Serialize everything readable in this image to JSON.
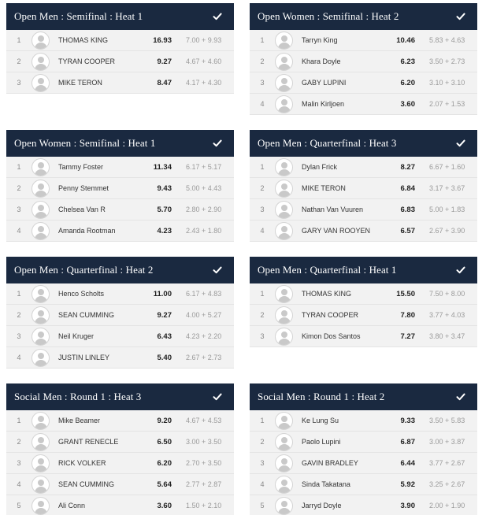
{
  "cards": [
    {
      "title": "Open Men : Semifinal : Heat 1",
      "rows": [
        {
          "rank": "1",
          "name": "THOMAS KING",
          "total": "16.93",
          "scores": "7.00 + 9.93"
        },
        {
          "rank": "2",
          "name": "TYRAN COOPER",
          "total": "9.27",
          "scores": "4.67 + 4.60"
        },
        {
          "rank": "3",
          "name": "MIKE TERON",
          "total": "8.47",
          "scores": "4.17 + 4.30"
        }
      ]
    },
    {
      "title": "Open Women : Semifinal : Heat 2",
      "rows": [
        {
          "rank": "1",
          "name": "Tarryn King",
          "total": "10.46",
          "scores": "5.83 + 4.63"
        },
        {
          "rank": "2",
          "name": "Khara Doyle",
          "total": "6.23",
          "scores": "3.50 + 2.73"
        },
        {
          "rank": "3",
          "name": "GABY LUPINI",
          "total": "6.20",
          "scores": "3.10 + 3.10"
        },
        {
          "rank": "4",
          "name": "Malin Kirljoen",
          "total": "3.60",
          "scores": "2.07 + 1.53"
        }
      ]
    },
    {
      "title": "Open Women : Semifinal : Heat 1",
      "rows": [
        {
          "rank": "1",
          "name": "Tammy Foster",
          "total": "11.34",
          "scores": "6.17 + 5.17"
        },
        {
          "rank": "2",
          "name": "Penny Stemmet",
          "total": "9.43",
          "scores": "5.00 + 4.43"
        },
        {
          "rank": "3",
          "name": "Chelsea Van R",
          "total": "5.70",
          "scores": "2.80 + 2.90"
        },
        {
          "rank": "4",
          "name": "Amanda Rootman",
          "total": "4.23",
          "scores": "2.43 + 1.80"
        }
      ]
    },
    {
      "title": "Open Men : Quarterfinal : Heat 3",
      "rows": [
        {
          "rank": "1",
          "name": "Dylan Frick",
          "total": "8.27",
          "scores": "6.67 + 1.60"
        },
        {
          "rank": "2",
          "name": "MIKE TERON",
          "total": "6.84",
          "scores": "3.17 + 3.67"
        },
        {
          "rank": "3",
          "name": "Nathan Van Vuuren",
          "total": "6.83",
          "scores": "5.00 + 1.83"
        },
        {
          "rank": "4",
          "name": "GARY VAN ROOYEN",
          "total": "6.57",
          "scores": "2.67 + 3.90"
        }
      ]
    },
    {
      "title": "Open Men : Quarterfinal : Heat 2",
      "rows": [
        {
          "rank": "1",
          "name": "Henco Scholts",
          "total": "11.00",
          "scores": "6.17 + 4.83"
        },
        {
          "rank": "2",
          "name": "SEAN CUMMING",
          "total": "9.27",
          "scores": "4.00 + 5.27"
        },
        {
          "rank": "3",
          "name": "Neil Kruger",
          "total": "6.43",
          "scores": "4.23 + 2.20"
        },
        {
          "rank": "4",
          "name": "JUSTIN LINLEY",
          "total": "5.40",
          "scores": "2.67 + 2.73"
        }
      ]
    },
    {
      "title": "Open Men : Quarterfinal : Heat 1",
      "rows": [
        {
          "rank": "1",
          "name": "THOMAS KING",
          "total": "15.50",
          "scores": "7.50 + 8.00"
        },
        {
          "rank": "2",
          "name": "TYRAN COOPER",
          "total": "7.80",
          "scores": "3.77 + 4.03"
        },
        {
          "rank": "3",
          "name": "Kimon Dos Santos",
          "total": "7.27",
          "scores": "3.80 + 3.47"
        }
      ]
    },
    {
      "title": "Social Men : Round 1 : Heat 3",
      "rows": [
        {
          "rank": "1",
          "name": "Mike Beamer",
          "total": "9.20",
          "scores": "4.67 + 4.53"
        },
        {
          "rank": "2",
          "name": "GRANT RENECLE",
          "total": "6.50",
          "scores": "3.00 + 3.50"
        },
        {
          "rank": "3",
          "name": "RICK VOLKER",
          "total": "6.20",
          "scores": "2.70 + 3.50"
        },
        {
          "rank": "4",
          "name": "SEAN CUMMING",
          "total": "5.64",
          "scores": "2.77 + 2.87"
        },
        {
          "rank": "5",
          "name": "Ali Conn",
          "total": "3.60",
          "scores": "1.50 + 2.10"
        }
      ]
    },
    {
      "title": "Social Men : Round 1 : Heat 2",
      "rows": [
        {
          "rank": "1",
          "name": "Ke Lung Su",
          "total": "9.33",
          "scores": "3.50 + 5.83"
        },
        {
          "rank": "2",
          "name": "Paolo Lupini",
          "total": "6.87",
          "scores": "3.00 + 3.87"
        },
        {
          "rank": "3",
          "name": "GAVIN BRADLEY",
          "total": "6.44",
          "scores": "3.77 + 2.67"
        },
        {
          "rank": "4",
          "name": "Sinda Takatana",
          "total": "5.92",
          "scores": "3.25 + 2.67"
        },
        {
          "rank": "5",
          "name": "Jarryd Doyle",
          "total": "3.90",
          "scores": "2.00 + 1.90"
        }
      ]
    }
  ],
  "colors": {
    "header_bg": "#1a2940",
    "row_bg": "#f2f2f2"
  },
  "icons": {
    "status": "check-icon",
    "athlete": "avatar-placeholder-icon"
  }
}
